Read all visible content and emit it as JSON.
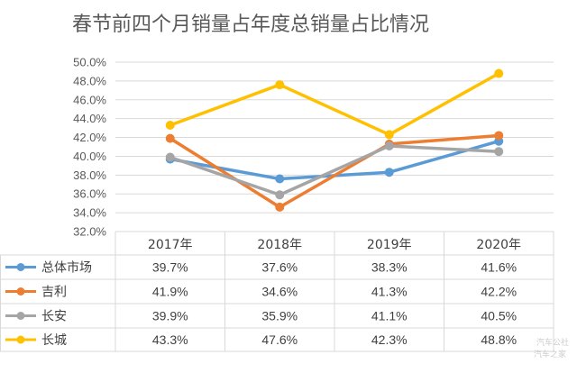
{
  "chart_data": {
    "type": "line",
    "title": "春节前四个月销量占年度总销量占比情况",
    "categories": [
      "2017年",
      "2018年",
      "2019年",
      "2020年"
    ],
    "ylim": [
      32.0,
      50.0
    ],
    "yticks": [
      "32.0%",
      "34.0%",
      "36.0%",
      "38.0%",
      "40.0%",
      "42.0%",
      "44.0%",
      "46.0%",
      "48.0%",
      "50.0%"
    ],
    "grid": true,
    "legend": "data-table-bottom",
    "series": [
      {
        "name": "总体市场",
        "color": "#5b9bd5",
        "values": [
          39.7,
          37.6,
          38.3,
          41.6
        ],
        "labels": [
          "39.7%",
          "37.6%",
          "38.3%",
          "41.6%"
        ]
      },
      {
        "name": "吉利",
        "color": "#ed7d31",
        "values": [
          41.9,
          34.6,
          41.3,
          42.2
        ],
        "labels": [
          "41.9%",
          "34.6%",
          "41.3%",
          "42.2%"
        ]
      },
      {
        "name": "长安",
        "color": "#a5a5a5",
        "values": [
          39.9,
          35.9,
          41.1,
          40.5
        ],
        "labels": [
          "39.9%",
          "35.9%",
          "41.1%",
          "40.5%"
        ]
      },
      {
        "name": "长城",
        "color": "#ffc000",
        "values": [
          43.3,
          47.6,
          42.3,
          48.8
        ],
        "labels": [
          "43.3%",
          "47.6%",
          "42.3%",
          "48.8%"
        ]
      }
    ]
  },
  "watermark": {
    "line1": "汽车公社",
    "line2": "汽车之家"
  }
}
